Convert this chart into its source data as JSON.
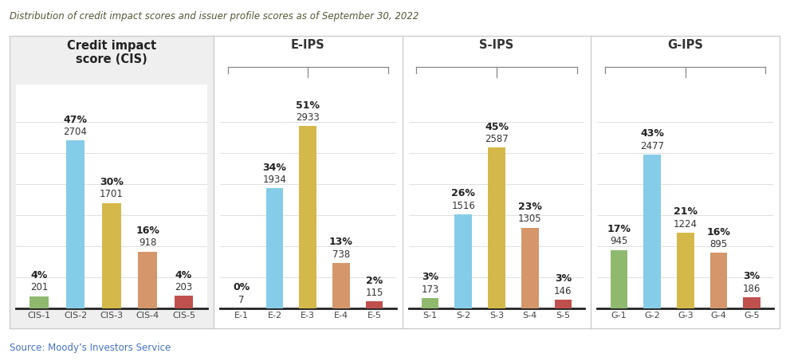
{
  "title": "Distribution of credit impact scores and issuer profile scores as of September 30, 2022",
  "source": "Source: Moody’s Investors Service",
  "panels": [
    {
      "label": "Credit impact\nscore (CIS)",
      "categories": [
        "CIS-1",
        "CIS-2",
        "CIS-3",
        "CIS-4",
        "CIS-5"
      ],
      "values": [
        201,
        2704,
        1701,
        918,
        203
      ],
      "pcts": [
        "4%",
        "47%",
        "30%",
        "16%",
        "4%"
      ],
      "colors": [
        "#8fba6e",
        "#85cce8",
        "#d4b84a",
        "#d4966a",
        "#c0504d"
      ],
      "has_bg": true
    },
    {
      "label": "E-IPS",
      "categories": [
        "E-1",
        "E-2",
        "E-3",
        "E-4",
        "E-5"
      ],
      "values": [
        7,
        1934,
        2933,
        738,
        115
      ],
      "pcts": [
        "0%",
        "34%",
        "51%",
        "13%",
        "2%"
      ],
      "colors": [
        "#8fba6e",
        "#85cce8",
        "#d4b84a",
        "#d4966a",
        "#c0504d"
      ],
      "has_bg": false
    },
    {
      "label": "S-IPS",
      "categories": [
        "S-1",
        "S-2",
        "S-3",
        "S-4",
        "S-5"
      ],
      "values": [
        173,
        1516,
        2587,
        1305,
        146
      ],
      "pcts": [
        "3%",
        "26%",
        "45%",
        "23%",
        "3%"
      ],
      "colors": [
        "#8fba6e",
        "#85cce8",
        "#d4b84a",
        "#d4966a",
        "#c0504d"
      ],
      "has_bg": false
    },
    {
      "label": "G-IPS",
      "categories": [
        "G-1",
        "G-2",
        "G-3",
        "G-4",
        "G-5"
      ],
      "values": [
        945,
        2477,
        1224,
        895,
        186
      ],
      "pcts": [
        "17%",
        "43%",
        "21%",
        "16%",
        "3%"
      ],
      "colors": [
        "#8fba6e",
        "#85cce8",
        "#d4b84a",
        "#d4966a",
        "#c0504d"
      ],
      "has_bg": false
    }
  ],
  "background_color": "#ffffff",
  "panel_bg_color": "#efefef",
  "outer_border_color": "#cccccc",
  "divider_color": "#cccccc",
  "title_color": "#555533",
  "source_color": "#4472c4",
  "bar_width": 0.52,
  "ylim": [
    0,
    3600
  ],
  "grid_values": [
    500,
    1000,
    1500,
    2000,
    2500,
    3000
  ],
  "grid_color": "#e0e0e0",
  "label_fontsize": 8.5,
  "value_fontsize": 8.5,
  "tick_fontsize": 8.0,
  "title_fontsize": 8.5,
  "panel_title_fontsize": 10.5,
  "pct_fontsize": 9.0
}
